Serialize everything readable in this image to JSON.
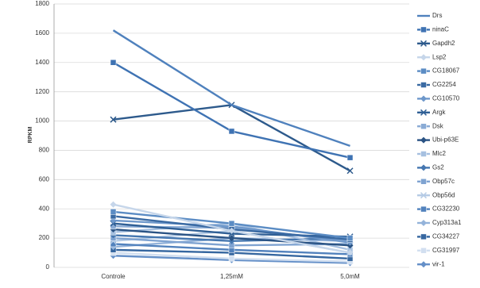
{
  "chart_data": {
    "type": "line",
    "y_label": "RPKM",
    "categories": [
      "Controle",
      "1,25mM",
      "5,0mM"
    ],
    "ylim": [
      0,
      1800
    ],
    "yticks": [
      0,
      200,
      400,
      600,
      800,
      1000,
      1200,
      1400,
      1600,
      1800
    ],
    "grid": true,
    "series": [
      {
        "name": "Drs",
        "color": "#4f81bd",
        "marker": "none",
        "values": [
          1620,
          1110,
          830
        ]
      },
      {
        "name": "ninaC",
        "color": "#3f73b3",
        "marker": "square",
        "values": [
          1400,
          930,
          750
        ]
      },
      {
        "name": "Gapdh2",
        "color": "#2d5a8c",
        "marker": "x",
        "values": [
          1010,
          1110,
          660
        ]
      },
      {
        "name": "Lsp2",
        "color": "#c6d6ea",
        "marker": "diamond",
        "values": [
          430,
          250,
          100
        ]
      },
      {
        "name": "CG18067",
        "color": "#5b8cc4",
        "marker": "square",
        "values": [
          380,
          300,
          200
        ]
      },
      {
        "name": "CG2254",
        "color": "#3a6aa3",
        "marker": "square",
        "values": [
          350,
          260,
          190
        ]
      },
      {
        "name": "CG10570",
        "color": "#6e98cb",
        "marker": "diamond",
        "values": [
          320,
          280,
          170
        ]
      },
      {
        "name": "Argk",
        "color": "#2f5f95",
        "marker": "x",
        "values": [
          300,
          230,
          210
        ]
      },
      {
        "name": "Dsk",
        "color": "#8aabd5",
        "marker": "square",
        "values": [
          280,
          270,
          180
        ]
      },
      {
        "name": "Ubi-p63E",
        "color": "#2a5384",
        "marker": "diamond",
        "values": [
          260,
          200,
          150
        ]
      },
      {
        "name": "Mlc2",
        "color": "#a6c0e0",
        "marker": "square",
        "values": [
          240,
          300,
          120
        ]
      },
      {
        "name": "Gs2",
        "color": "#4577b0",
        "marker": "diamond",
        "values": [
          220,
          180,
          200
        ]
      },
      {
        "name": "Obp57c",
        "color": "#7fa3d1",
        "marker": "square",
        "values": [
          200,
          150,
          160
        ]
      },
      {
        "name": "Obp56d",
        "color": "#b5cbe5",
        "marker": "x",
        "values": [
          180,
          250,
          100
        ]
      },
      {
        "name": "CG32230",
        "color": "#5282bd",
        "marker": "square",
        "values": [
          160,
          120,
          90
        ]
      },
      {
        "name": "Cyp313a1",
        "color": "#94b3da",
        "marker": "diamond",
        "values": [
          140,
          200,
          180
        ]
      },
      {
        "name": "CG34227",
        "color": "#3667a0",
        "marker": "square",
        "values": [
          120,
          100,
          60
        ]
      },
      {
        "name": "CG31997",
        "color": "#d2dff0",
        "marker": "square",
        "values": [
          100,
          60,
          40
        ]
      },
      {
        "name": "vir-1",
        "color": "#6590c8",
        "marker": "diamond",
        "values": [
          80,
          50,
          30
        ]
      }
    ]
  }
}
